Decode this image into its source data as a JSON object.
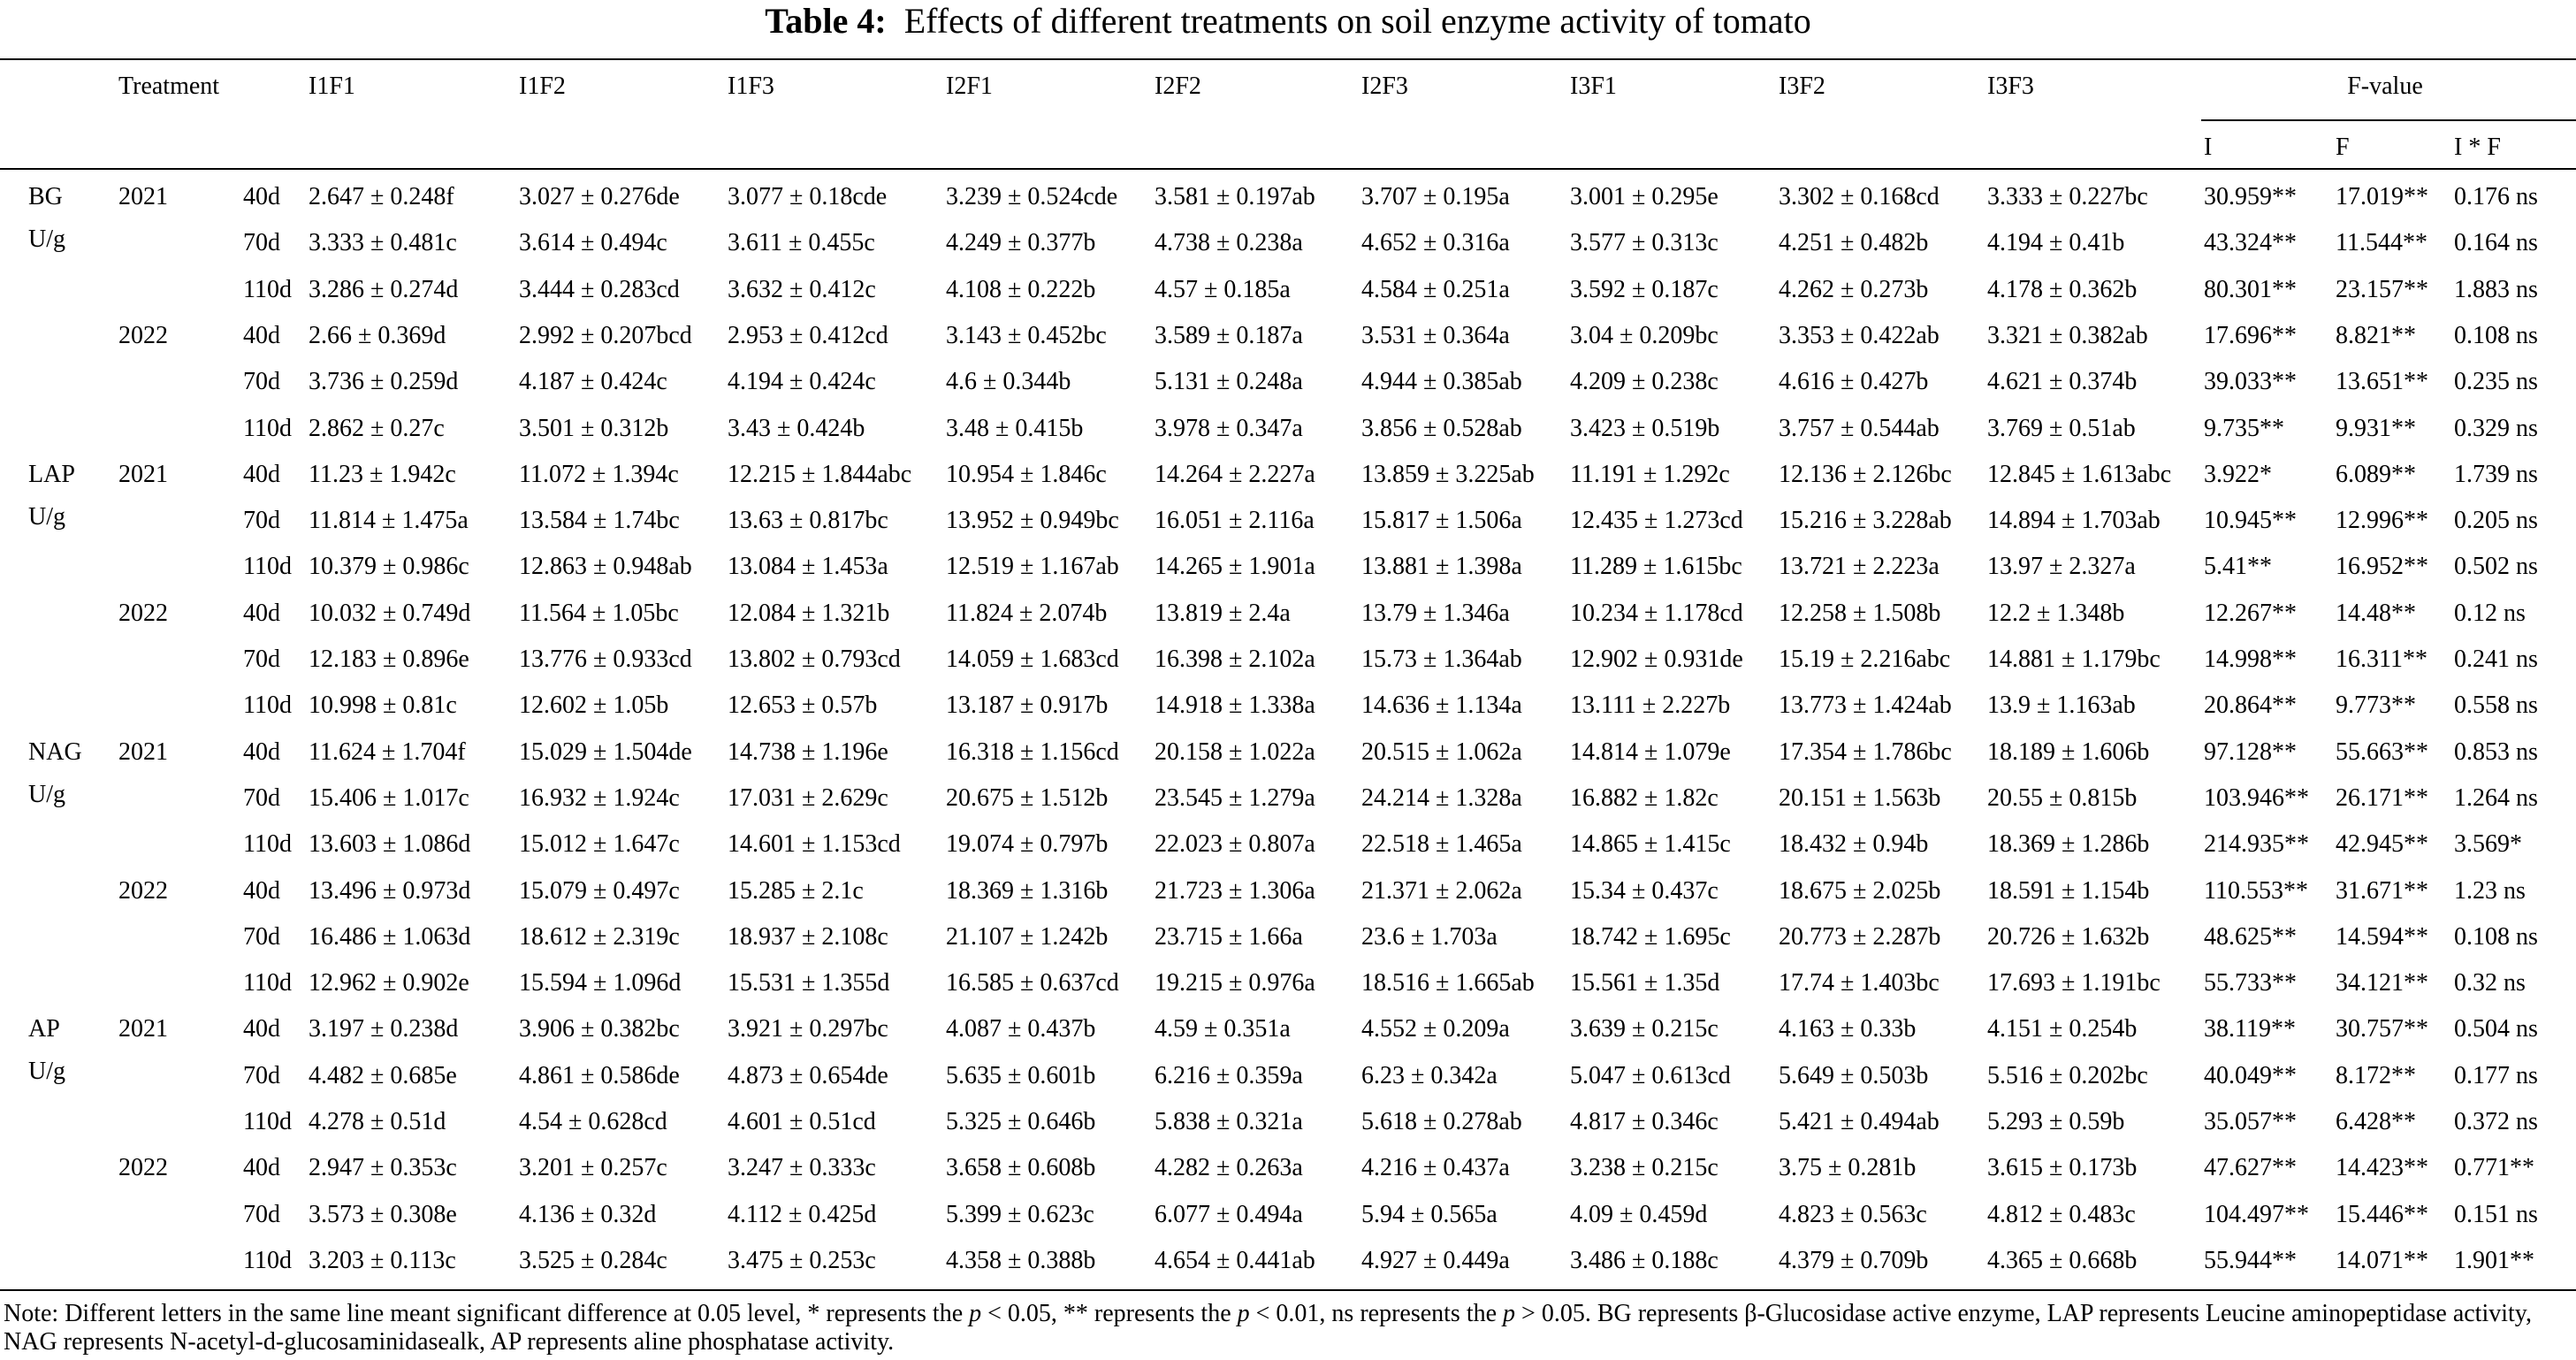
{
  "title_label": "Table 4:",
  "title": "Effects of different treatments on soil enzyme activity of tomato",
  "header": {
    "treatment": "Treatment",
    "columns": [
      "I1F1",
      "I1F2",
      "I1F3",
      "I2F1",
      "I2F2",
      "I2F3",
      "I3F1",
      "I3F2",
      "I3F3"
    ],
    "fvalue": "F-value",
    "fcolumns": [
      "I",
      "F",
      "I * F"
    ]
  },
  "groups": [
    {
      "enzyme": "BG",
      "unit": "U/g",
      "years": [
        {
          "year": "2021",
          "rows": [
            {
              "day": "40d",
              "cells": [
                "2.647 ± 0.248f",
                "3.027 ± 0.276de",
                "3.077 ± 0.18cde",
                "3.239 ± 0.524cde",
                "3.581 ± 0.197ab",
                "3.707 ± 0.195a",
                "3.001 ± 0.295e",
                "3.302 ± 0.168cd",
                "3.333 ± 0.227bc",
                "30.959**",
                "17.019**",
                "0.176 ns"
              ]
            },
            {
              "day": "70d",
              "cells": [
                "3.333 ± 0.481c",
                "3.614 ± 0.494c",
                "3.611 ± 0.455c",
                "4.249 ± 0.377b",
                "4.738 ± 0.238a",
                "4.652 ± 0.316a",
                "3.577 ± 0.313c",
                "4.251 ± 0.482b",
                "4.194 ± 0.41b",
                "43.324**",
                "11.544**",
                "0.164 ns"
              ]
            },
            {
              "day": "110d",
              "cells": [
                "3.286 ± 0.274d",
                "3.444 ± 0.283cd",
                "3.632 ± 0.412c",
                "4.108 ± 0.222b",
                "4.57 ± 0.185a",
                "4.584 ± 0.251a",
                "3.592 ± 0.187c",
                "4.262 ± 0.273b",
                "4.178 ± 0.362b",
                "80.301**",
                "23.157**",
                "1.883 ns"
              ]
            }
          ]
        },
        {
          "year": "2022",
          "rows": [
            {
              "day": "40d",
              "cells": [
                "2.66 ± 0.369d",
                "2.992 ± 0.207bcd",
                "2.953 ± 0.412cd",
                "3.143 ± 0.452bc",
                "3.589 ± 0.187a",
                "3.531 ± 0.364a",
                "3.04 ± 0.209bc",
                "3.353 ± 0.422ab",
                "3.321 ± 0.382ab",
                "17.696**",
                "8.821**",
                "0.108 ns"
              ]
            },
            {
              "day": "70d",
              "cells": [
                "3.736 ± 0.259d",
                "4.187 ± 0.424c",
                "4.194 ± 0.424c",
                "4.6 ± 0.344b",
                "5.131 ± 0.248a",
                "4.944 ± 0.385ab",
                "4.209 ± 0.238c",
                "4.616 ± 0.427b",
                "4.621 ± 0.374b",
                "39.033**",
                "13.651**",
                "0.235 ns"
              ]
            },
            {
              "day": "110d",
              "cells": [
                "2.862 ± 0.27c",
                "3.501 ± 0.312b",
                "3.43 ± 0.424b",
                "3.48 ± 0.415b",
                "3.978 ± 0.347a",
                "3.856 ± 0.528ab",
                "3.423 ± 0.519b",
                "3.757 ± 0.544ab",
                "3.769 ± 0.51ab",
                "9.735**",
                "9.931**",
                "0.329 ns"
              ]
            }
          ]
        }
      ]
    },
    {
      "enzyme": "LAP",
      "unit": "U/g",
      "years": [
        {
          "year": "2021",
          "rows": [
            {
              "day": "40d",
              "cells": [
                "11.23 ± 1.942c",
                "11.072 ± 1.394c",
                "12.215 ± 1.844abc",
                "10.954 ± 1.846c",
                "14.264 ± 2.227a",
                "13.859 ± 3.225ab",
                "11.191 ± 1.292c",
                "12.136 ± 2.126bc",
                "12.845 ± 1.613abc",
                "3.922*",
                "6.089**",
                "1.739 ns"
              ]
            },
            {
              "day": "70d",
              "cells": [
                "11.814 ± 1.475a",
                "13.584 ± 1.74bc",
                "13.63 ± 0.817bc",
                "13.952 ± 0.949bc",
                "16.051 ± 2.116a",
                "15.817 ± 1.506a",
                "12.435 ± 1.273cd",
                "15.216 ± 3.228ab",
                "14.894 ± 1.703ab",
                "10.945**",
                "12.996**",
                "0.205 ns"
              ]
            },
            {
              "day": "110d",
              "cells": [
                "10.379 ± 0.986c",
                "12.863 ± 0.948ab",
                "13.084 ± 1.453a",
                "12.519 ± 1.167ab",
                "14.265 ± 1.901a",
                "13.881 ± 1.398a",
                "11.289 ± 1.615bc",
                "13.721 ± 2.223a",
                "13.97 ± 2.327a",
                "5.41**",
                "16.952**",
                "0.502 ns"
              ]
            }
          ]
        },
        {
          "year": "2022",
          "rows": [
            {
              "day": "40d",
              "cells": [
                "10.032 ± 0.749d",
                "11.564 ± 1.05bc",
                "12.084 ± 1.321b",
                "11.824 ± 2.074b",
                "13.819 ± 2.4a",
                "13.79 ± 1.346a",
                "10.234 ± 1.178cd",
                "12.258 ± 1.508b",
                "12.2 ± 1.348b",
                "12.267**",
                "14.48**",
                "0.12 ns"
              ]
            },
            {
              "day": "70d",
              "cells": [
                "12.183 ± 0.896e",
                "13.776 ± 0.933cd",
                "13.802 ± 0.793cd",
                "14.059 ± 1.683cd",
                "16.398 ± 2.102a",
                "15.73 ± 1.364ab",
                "12.902 ± 0.931de",
                "15.19 ± 2.216abc",
                "14.881 ± 1.179bc",
                "14.998**",
                "16.311**",
                "0.241 ns"
              ]
            },
            {
              "day": "110d",
              "cells": [
                "10.998 ± 0.81c",
                "12.602 ± 1.05b",
                "12.653 ± 0.57b",
                "13.187 ± 0.917b",
                "14.918 ± 1.338a",
                "14.636 ± 1.134a",
                "13.111 ± 2.227b",
                "13.773 ± 1.424ab",
                "13.9 ± 1.163ab",
                "20.864**",
                "9.773**",
                "0.558 ns"
              ]
            }
          ]
        }
      ]
    },
    {
      "enzyme": "NAG",
      "unit": "U/g",
      "years": [
        {
          "year": "2021",
          "rows": [
            {
              "day": "40d",
              "cells": [
                "11.624 ± 1.704f",
                "15.029 ± 1.504de",
                "14.738 ± 1.196e",
                "16.318 ± 1.156cd",
                "20.158 ± 1.022a",
                "20.515 ± 1.062a",
                "14.814 ± 1.079e",
                "17.354 ± 1.786bc",
                "18.189 ± 1.606b",
                "97.128**",
                "55.663**",
                "0.853 ns"
              ]
            },
            {
              "day": "70d",
              "cells": [
                "15.406 ± 1.017c",
                "16.932 ± 1.924c",
                "17.031 ± 2.629c",
                "20.675 ± 1.512b",
                "23.545 ± 1.279a",
                "24.214 ± 1.328a",
                "16.882 ± 1.82c",
                "20.151 ± 1.563b",
                "20.55 ± 0.815b",
                "103.946**",
                "26.171**",
                "1.264 ns"
              ]
            },
            {
              "day": "110d",
              "cells": [
                "13.603 ± 1.086d",
                "15.012 ± 1.647c",
                "14.601 ± 1.153cd",
                "19.074 ± 0.797b",
                "22.023 ± 0.807a",
                "22.518 ± 1.465a",
                "14.865 ± 1.415c",
                "18.432 ± 0.94b",
                "18.369 ± 1.286b",
                "214.935**",
                "42.945**",
                "3.569*"
              ]
            }
          ]
        },
        {
          "year": "2022",
          "rows": [
            {
              "day": "40d",
              "cells": [
                "13.496 ± 0.973d",
                "15.079 ± 0.497c",
                "15.285 ± 2.1c",
                "18.369 ± 1.316b",
                "21.723 ± 1.306a",
                "21.371 ± 2.062a",
                "15.34 ± 0.437c",
                "18.675 ± 2.025b",
                "18.591 ± 1.154b",
                "110.553**",
                "31.671**",
                "1.23 ns"
              ]
            },
            {
              "day": "70d",
              "cells": [
                "16.486 ± 1.063d",
                "18.612 ± 2.319c",
                "18.937 ± 2.108c",
                "21.107 ± 1.242b",
                "23.715 ± 1.66a",
                "23.6 ± 1.703a",
                "18.742 ± 1.695c",
                "20.773 ± 2.287b",
                "20.726 ± 1.632b",
                "48.625**",
                "14.594**",
                "0.108 ns"
              ]
            },
            {
              "day": "110d",
              "cells": [
                "12.962 ± 0.902e",
                "15.594 ± 1.096d",
                "15.531 ± 1.355d",
                "16.585 ± 0.637cd",
                "19.215 ± 0.976a",
                "18.516 ± 1.665ab",
                "15.561 ± 1.35d",
                "17.74 ± 1.403bc",
                "17.693 ± 1.191bc",
                "55.733**",
                "34.121**",
                "0.32 ns"
              ]
            }
          ]
        }
      ]
    },
    {
      "enzyme": "AP",
      "unit": "U/g",
      "years": [
        {
          "year": "2021",
          "rows": [
            {
              "day": "40d",
              "cells": [
                "3.197 ± 0.238d",
                "3.906 ± 0.382bc",
                "3.921 ± 0.297bc",
                "4.087 ± 0.437b",
                "4.59 ± 0.351a",
                "4.552 ± 0.209a",
                "3.639 ± 0.215c",
                "4.163 ± 0.33b",
                "4.151 ± 0.254b",
                "38.119**",
                "30.757**",
                "0.504 ns"
              ]
            },
            {
              "day": "70d",
              "cells": [
                "4.482 ± 0.685e",
                "4.861 ± 0.586de",
                "4.873 ± 0.654de",
                "5.635 ± 0.601b",
                "6.216 ± 0.359a",
                "6.23 ± 0.342a",
                "5.047 ± 0.613cd",
                "5.649 ± 0.503b",
                "5.516 ± 0.202bc",
                "40.049**",
                "8.172**",
                "0.177 ns"
              ]
            },
            {
              "day": "110d",
              "cells": [
                "4.278 ± 0.51d",
                "4.54 ± 0.628cd",
                "4.601 ± 0.51cd",
                "5.325 ± 0.646b",
                "5.838 ± 0.321a",
                "5.618 ± 0.278ab",
                "4.817 ± 0.346c",
                "5.421 ± 0.494ab",
                "5.293 ± 0.59b",
                "35.057**",
                "6.428**",
                "0.372 ns"
              ]
            }
          ]
        },
        {
          "year": "2022",
          "rows": [
            {
              "day": "40d",
              "cells": [
                "2.947 ± 0.353c",
                "3.201 ± 0.257c",
                "3.247 ± 0.333c",
                "3.658 ± 0.608b",
                "4.282 ± 0.263a",
                "4.216 ± 0.437a",
                "3.238 ± 0.215c",
                "3.75 ± 0.281b",
                "3.615 ± 0.173b",
                "47.627**",
                "14.423**",
                "0.771**"
              ]
            },
            {
              "day": "70d",
              "cells": [
                "3.573 ± 0.308e",
                "4.136 ± 0.32d",
                "4.112 ± 0.425d",
                "5.399 ± 0.623c",
                "6.077 ± 0.494a",
                "5.94 ± 0.565a",
                "4.09 ± 0.459d",
                "4.823 ± 0.563c",
                "4.812 ± 0.483c",
                "104.497**",
                "15.446**",
                "0.151 ns"
              ]
            },
            {
              "day": "110d",
              "cells": [
                "3.203 ± 0.113c",
                "3.525 ± 0.284c",
                "3.475 ± 0.253c",
                "4.358 ± 0.388b",
                "4.654 ± 0.441ab",
                "4.927 ± 0.449a",
                "3.486 ± 0.188c",
                "4.379 ± 0.709b",
                "4.365 ± 0.668b",
                "55.944**",
                "14.071**",
                "1.901**"
              ]
            }
          ]
        }
      ]
    }
  ],
  "note": [
    "Note: Different letters in the same line meant significant difference at 0.05 level, * represents the ",
    "p",
    " < 0.05, ** represents the ",
    "p",
    " < 0.01, ns represents the ",
    "p",
    " > 0.05. BG represents β-Glucosidase active enzyme, LAP represents Leucine aminopeptidase activity, NAG represents N-acetyl-d-glucosaminidasealk, AP represents aline phosphatase activity."
  ]
}
